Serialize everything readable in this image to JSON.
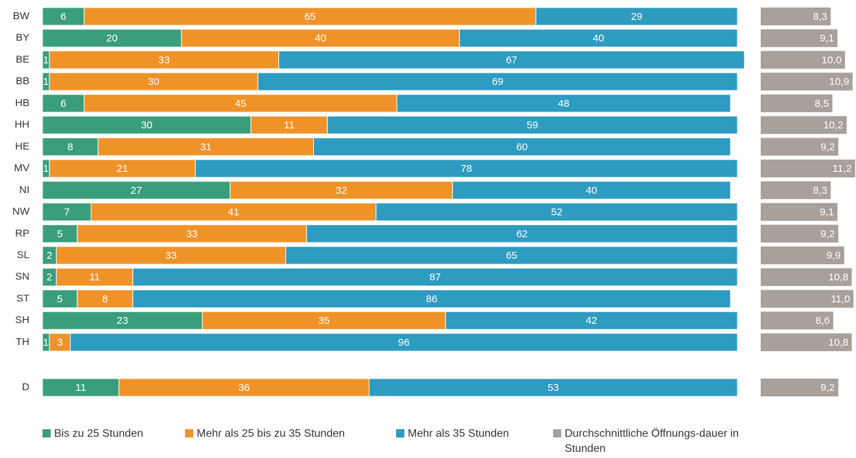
{
  "chart_data": {
    "type": "stacked_bar_horizontal",
    "categories": [
      "BW",
      "BY",
      "BE",
      "BB",
      "HB",
      "HH",
      "HE",
      "MV",
      "NI",
      "NW",
      "RP",
      "SL",
      "SN",
      "ST",
      "SH",
      "TH",
      "D"
    ],
    "xlim": [
      0,
      100
    ],
    "x2lim": [
      0,
      11.3
    ],
    "series": [
      {
        "name": "Bis zu 25 Stunden",
        "color": "#3a9e7c",
        "values": [
          6,
          20,
          1,
          1,
          6,
          30,
          8,
          1,
          27,
          7,
          5,
          2,
          2,
          5,
          23,
          1,
          11
        ]
      },
      {
        "name": "Mehr als 25 bis zu 35 Stunden",
        "color": "#ef9329",
        "values": [
          65,
          40,
          33,
          30,
          45,
          11,
          31,
          21,
          32,
          41,
          33,
          33,
          11,
          8,
          35,
          3,
          36
        ]
      },
      {
        "name": "Mehr als 35 Stunden",
        "color": "#2e9bc1",
        "values": [
          29,
          40,
          67,
          69,
          48,
          59,
          60,
          78,
          40,
          52,
          62,
          65,
          87,
          86,
          42,
          96,
          53
        ]
      },
      {
        "name": "Durchschnittliche Öffnungs-dauer in Stunden",
        "color": "#a7a09b",
        "axis": "x2",
        "values": [
          8.3,
          9.1,
          10.0,
          10.9,
          8.5,
          10.2,
          9.2,
          11.2,
          8.3,
          9.1,
          9.2,
          9.9,
          10.8,
          11.0,
          8.6,
          10.8,
          9.2
        ],
        "value_labels": [
          "8,3",
          "9,1",
          "10,0",
          "10,9",
          "8,5",
          "10,2",
          "9,2",
          "11,2",
          "8,3",
          "9,1",
          "9,2",
          "9,9",
          "10,8",
          "11,0",
          "8,6",
          "10,8",
          "9,2"
        ]
      }
    ]
  }
}
